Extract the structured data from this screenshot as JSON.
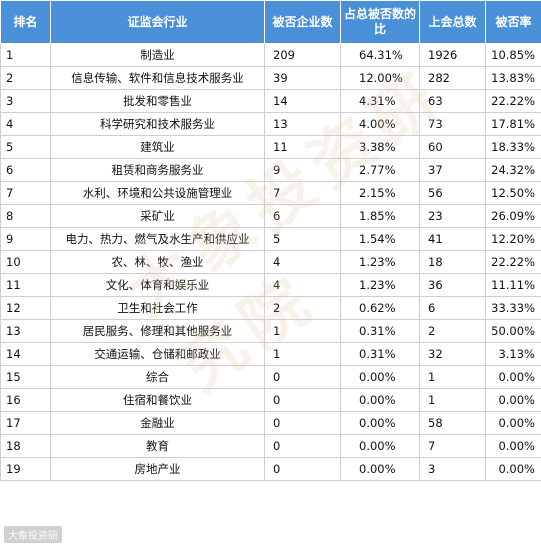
{
  "headers": [
    "排名",
    "证监会行业",
    "被否企业数",
    "占总被否数的比",
    "上会总数",
    "被否率"
  ],
  "rows": [
    {
      "rank": "1",
      "industry": "制造业",
      "rejected": "209",
      "share": "64.31%",
      "total": "1926",
      "rate": "10.85%"
    },
    {
      "rank": "2",
      "industry": "信息传输、软件和信息技术服务业",
      "rejected": "39",
      "share": "12.00%",
      "total": "282",
      "rate": "13.83%"
    },
    {
      "rank": "3",
      "industry": "批发和零售业",
      "rejected": "14",
      "share": "4.31%",
      "total": "63",
      "rate": "22.22%"
    },
    {
      "rank": "4",
      "industry": "科学研究和技术服务业",
      "rejected": "13",
      "share": "4.00%",
      "total": "73",
      "rate": "17.81%"
    },
    {
      "rank": "5",
      "industry": "建筑业",
      "rejected": "11",
      "share": "3.38%",
      "total": "60",
      "rate": "18.33%"
    },
    {
      "rank": "6",
      "industry": "租赁和商务服务业",
      "rejected": "9",
      "share": "2.77%",
      "total": "37",
      "rate": "24.32%"
    },
    {
      "rank": "7",
      "industry": "水利、环境和公共设施管理业",
      "rejected": "7",
      "share": "2.15%",
      "total": "56",
      "rate": "12.50%"
    },
    {
      "rank": "8",
      "industry": "采矿业",
      "rejected": "6",
      "share": "1.85%",
      "total": "23",
      "rate": "26.09%"
    },
    {
      "rank": "9",
      "industry": "电力、热力、燃气及水生产和供应业",
      "rejected": "5",
      "share": "1.54%",
      "total": "41",
      "rate": "12.20%"
    },
    {
      "rank": "10",
      "industry": "农、林、牧、渔业",
      "rejected": "4",
      "share": "1.23%",
      "total": "18",
      "rate": "22.22%"
    },
    {
      "rank": "11",
      "industry": "文化、体育和娱乐业",
      "rejected": "4",
      "share": "1.23%",
      "total": "36",
      "rate": "11.11%"
    },
    {
      "rank": "12",
      "industry": "卫生和社会工作",
      "rejected": "2",
      "share": "0.62%",
      "total": "6",
      "rate": "33.33%"
    },
    {
      "rank": "13",
      "industry": "居民服务、修理和其他服务业",
      "rejected": "1",
      "share": "0.31%",
      "total": "2",
      "rate": "50.00%"
    },
    {
      "rank": "14",
      "industry": "交通运输、仓储和邮政业",
      "rejected": "1",
      "share": "0.31%",
      "total": "32",
      "rate": "3.13%"
    },
    {
      "rank": "15",
      "industry": "综合",
      "rejected": "0",
      "share": "0.00%",
      "total": "1",
      "rate": "0.00%"
    },
    {
      "rank": "16",
      "industry": "住宿和餐饮业",
      "rejected": "0",
      "share": "0.00%",
      "total": "1",
      "rate": "0.00%"
    },
    {
      "rank": "17",
      "industry": "金融业",
      "rejected": "0",
      "share": "0.00%",
      "total": "58",
      "rate": "0.00%"
    },
    {
      "rank": "18",
      "industry": "教育",
      "rejected": "0",
      "share": "0.00%",
      "total": "7",
      "rate": "0.00%"
    },
    {
      "rank": "19",
      "industry": "房地产业",
      "rejected": "0",
      "share": "0.00%",
      "total": "3",
      "rate": "0.00%"
    }
  ],
  "watermark": "大象投资研究院",
  "logo": "大象投资研"
}
